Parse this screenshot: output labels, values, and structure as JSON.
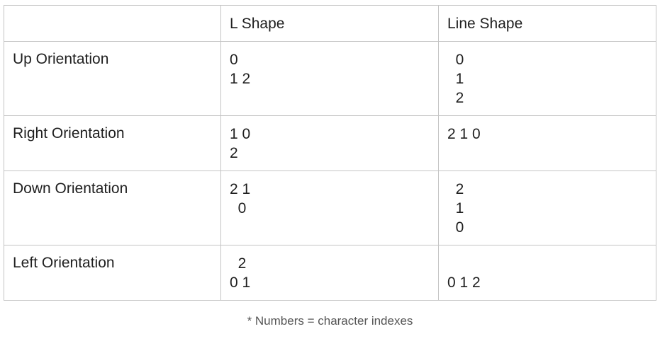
{
  "header": {
    "col_0": "",
    "col_1": "L Shape",
    "col_2": "Line Shape"
  },
  "rows": [
    {
      "label": "Up Orientation",
      "l_shape": [
        "0",
        "1 2"
      ],
      "line_shape": [
        "  0",
        "  1",
        "  2"
      ]
    },
    {
      "label": "Right Orientation",
      "l_shape": [
        "1 0",
        "2"
      ],
      "line_shape": [
        "2 1 0"
      ]
    },
    {
      "label": "Down Orientation",
      "l_shape": [
        "2 1",
        "  0"
      ],
      "line_shape": [
        "  2",
        "  1",
        "  0"
      ]
    },
    {
      "label": "Left Orientation",
      "l_shape": [
        "  2",
        "0 1"
      ],
      "line_shape": [
        "",
        "0 1 2"
      ]
    }
  ],
  "caption": "* Numbers = character indexes"
}
